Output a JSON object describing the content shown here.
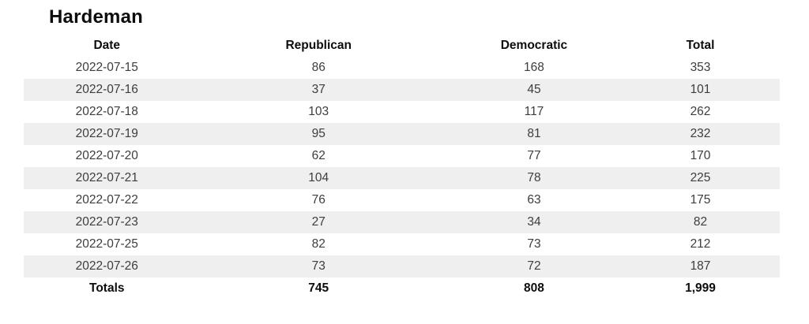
{
  "title": "Hardeman",
  "table": {
    "columns": [
      "Date",
      "Republican",
      "Democratic",
      "Total"
    ],
    "rows": [
      [
        "2022-07-15",
        "86",
        "168",
        "353"
      ],
      [
        "2022-07-16",
        "37",
        "45",
        "101"
      ],
      [
        "2022-07-18",
        "103",
        "117",
        "262"
      ],
      [
        "2022-07-19",
        "95",
        "81",
        "232"
      ],
      [
        "2022-07-20",
        "62",
        "77",
        "170"
      ],
      [
        "2022-07-21",
        "104",
        "78",
        "225"
      ],
      [
        "2022-07-22",
        "76",
        "63",
        "175"
      ],
      [
        "2022-07-23",
        "27",
        "34",
        "82"
      ],
      [
        "2022-07-25",
        "82",
        "73",
        "212"
      ],
      [
        "2022-07-26",
        "73",
        "72",
        "187"
      ]
    ],
    "totals": [
      "Totals",
      "745",
      "808",
      "1,999"
    ]
  },
  "colors": {
    "stripe": "#efefef",
    "body_text": "#3d3d3d",
    "heading_text": "#0d0d0d",
    "background": "#ffffff"
  },
  "chart_data": {
    "type": "table",
    "title": "Hardeman",
    "columns": [
      "Date",
      "Republican",
      "Democratic",
      "Total"
    ],
    "rows": [
      {
        "date": "2022-07-15",
        "republican": 86,
        "democratic": 168,
        "total": 353
      },
      {
        "date": "2022-07-16",
        "republican": 37,
        "democratic": 45,
        "total": 101
      },
      {
        "date": "2022-07-18",
        "republican": 103,
        "democratic": 117,
        "total": 262
      },
      {
        "date": "2022-07-19",
        "republican": 95,
        "democratic": 81,
        "total": 232
      },
      {
        "date": "2022-07-20",
        "republican": 62,
        "democratic": 77,
        "total": 170
      },
      {
        "date": "2022-07-21",
        "republican": 104,
        "democratic": 78,
        "total": 225
      },
      {
        "date": "2022-07-22",
        "republican": 76,
        "democratic": 63,
        "total": 175
      },
      {
        "date": "2022-07-23",
        "republican": 27,
        "democratic": 34,
        "total": 82
      },
      {
        "date": "2022-07-25",
        "republican": 82,
        "democratic": 73,
        "total": 212
      },
      {
        "date": "2022-07-26",
        "republican": 73,
        "democratic": 72,
        "total": 187
      }
    ],
    "totals": {
      "label": "Totals",
      "republican": 745,
      "democratic": 808,
      "total": 1999
    },
    "layout": {
      "zebra_striping": true,
      "stripe_rows": "even data rows",
      "grid": false,
      "alignment": "center"
    }
  }
}
